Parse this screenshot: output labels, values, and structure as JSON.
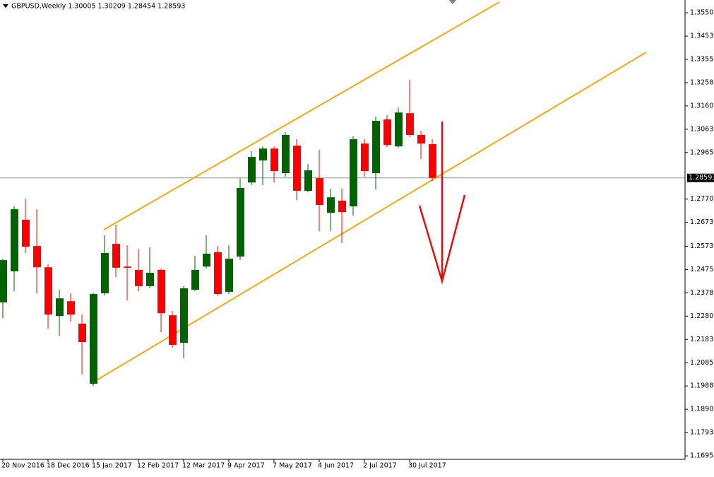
{
  "chart_data": {
    "type": "candlestick",
    "title": "GBPUSD,Weekly  1.30005 1.30209 1.28454 1.28593",
    "categories": [
      "20 Nov 2016",
      null,
      null,
      null,
      "18 Dec 2016",
      null,
      null,
      null,
      "15 Jan 2017",
      null,
      null,
      null,
      "12 Feb 2017",
      null,
      null,
      null,
      "12 Mar 2017",
      null,
      null,
      null,
      "9 Apr 2017",
      null,
      null,
      null,
      "7 May 2017",
      null,
      null,
      null,
      "4 Jun 2017",
      null,
      null,
      null,
      "2 Jul 2017",
      null,
      null,
      null,
      "30 Jul 2017",
      null,
      null
    ],
    "series": [
      {
        "name": "GBPUSD",
        "up_color": "#006400",
        "down_color": "#ff0000",
        "open": [
          1.2338,
          1.2468,
          1.2684,
          1.2574,
          1.2485,
          1.2281,
          1.2343,
          1.2249,
          1.1997,
          1.2376,
          1.2583,
          1.2488,
          1.2474,
          1.2406,
          1.2474,
          1.2284,
          1.2169,
          1.2391,
          1.2488,
          1.2548,
          1.2382,
          1.253,
          1.284,
          1.2932,
          1.2982,
          1.2879,
          1.2994,
          1.2805,
          1.2858,
          1.2713,
          1.2764,
          1.274,
          1.3003,
          1.2879,
          1.3104,
          1.2991,
          1.313,
          1.3039,
          1.30005
        ],
        "high": [
          1.2521,
          1.274,
          1.2772,
          1.2728,
          1.2497,
          1.2391,
          1.2376,
          1.2287,
          1.2379,
          1.2619,
          1.2663,
          1.2577,
          1.2562,
          1.2568,
          1.248,
          1.2302,
          1.2406,
          1.2533,
          1.2619,
          1.2574,
          1.2577,
          1.2858,
          1.2971,
          1.2991,
          1.2991,
          1.3051,
          1.3021,
          1.2917,
          1.2977,
          1.2814,
          1.2814,
          1.3033,
          1.3021,
          1.3116,
          1.3122,
          1.3154,
          1.3269,
          1.3056,
          1.30209
        ],
        "low": [
          1.2272,
          1.2385,
          1.2545,
          1.2376,
          1.2228,
          1.2198,
          1.2258,
          1.2036,
          1.1988,
          1.2367,
          1.2444,
          1.2346,
          1.2385,
          1.2397,
          1.2213,
          1.2148,
          1.2104,
          1.2385,
          1.248,
          1.2367,
          1.2373,
          1.2515,
          1.2829,
          1.2829,
          1.284,
          1.2864,
          1.2767,
          1.2799,
          1.2636,
          1.2636,
          1.2586,
          1.2701,
          1.2864,
          1.2811,
          1.2988,
          1.2985,
          1.303,
          1.2938,
          1.28454
        ],
        "close": [
          1.2515,
          1.2728,
          1.2571,
          1.2485,
          1.2287,
          1.2355,
          1.2287,
          1.2172,
          1.2373,
          1.2545,
          1.2483,
          1.2483,
          1.2406,
          1.2462,
          1.2293,
          1.216,
          1.2397,
          1.2474,
          1.2542,
          1.2373,
          1.2521,
          1.2817,
          1.2947,
          1.2982,
          1.2888,
          1.3039,
          1.2805,
          1.2891,
          1.2746,
          1.2778,
          1.2716,
          1.3021,
          1.2888,
          1.3098,
          1.2997,
          1.3133,
          1.3039,
          1.3003,
          1.28593
        ]
      }
    ],
    "current_price": 1.28593,
    "ylim": [
      1.1681,
      1.3604
    ],
    "yticks": [
      1.35505,
      {
        "value": 1.3453,
        "label": "1.34530"
      },
      1.33555,
      {
        "value": 1.3258,
        "label": "1.32580"
      },
      1.31605,
      {
        "value": 1.3063,
        "label": "1.30630"
      },
      1.29655,
      1.27705,
      {
        "value": 1.2673,
        "label": "1.26730"
      },
      {
        "value": 1.2573,
        "label": "1.25730"
      },
      1.24755,
      {
        "value": 1.2378,
        "label": "1.23780"
      },
      1.22805,
      {
        "value": 1.2183,
        "label": "1.21830"
      },
      1.20855,
      {
        "value": 1.1988,
        "label": "1.19880"
      },
      1.18905,
      {
        "value": 1.1793,
        "label": "1.17930"
      },
      1.16955
    ]
  }
}
